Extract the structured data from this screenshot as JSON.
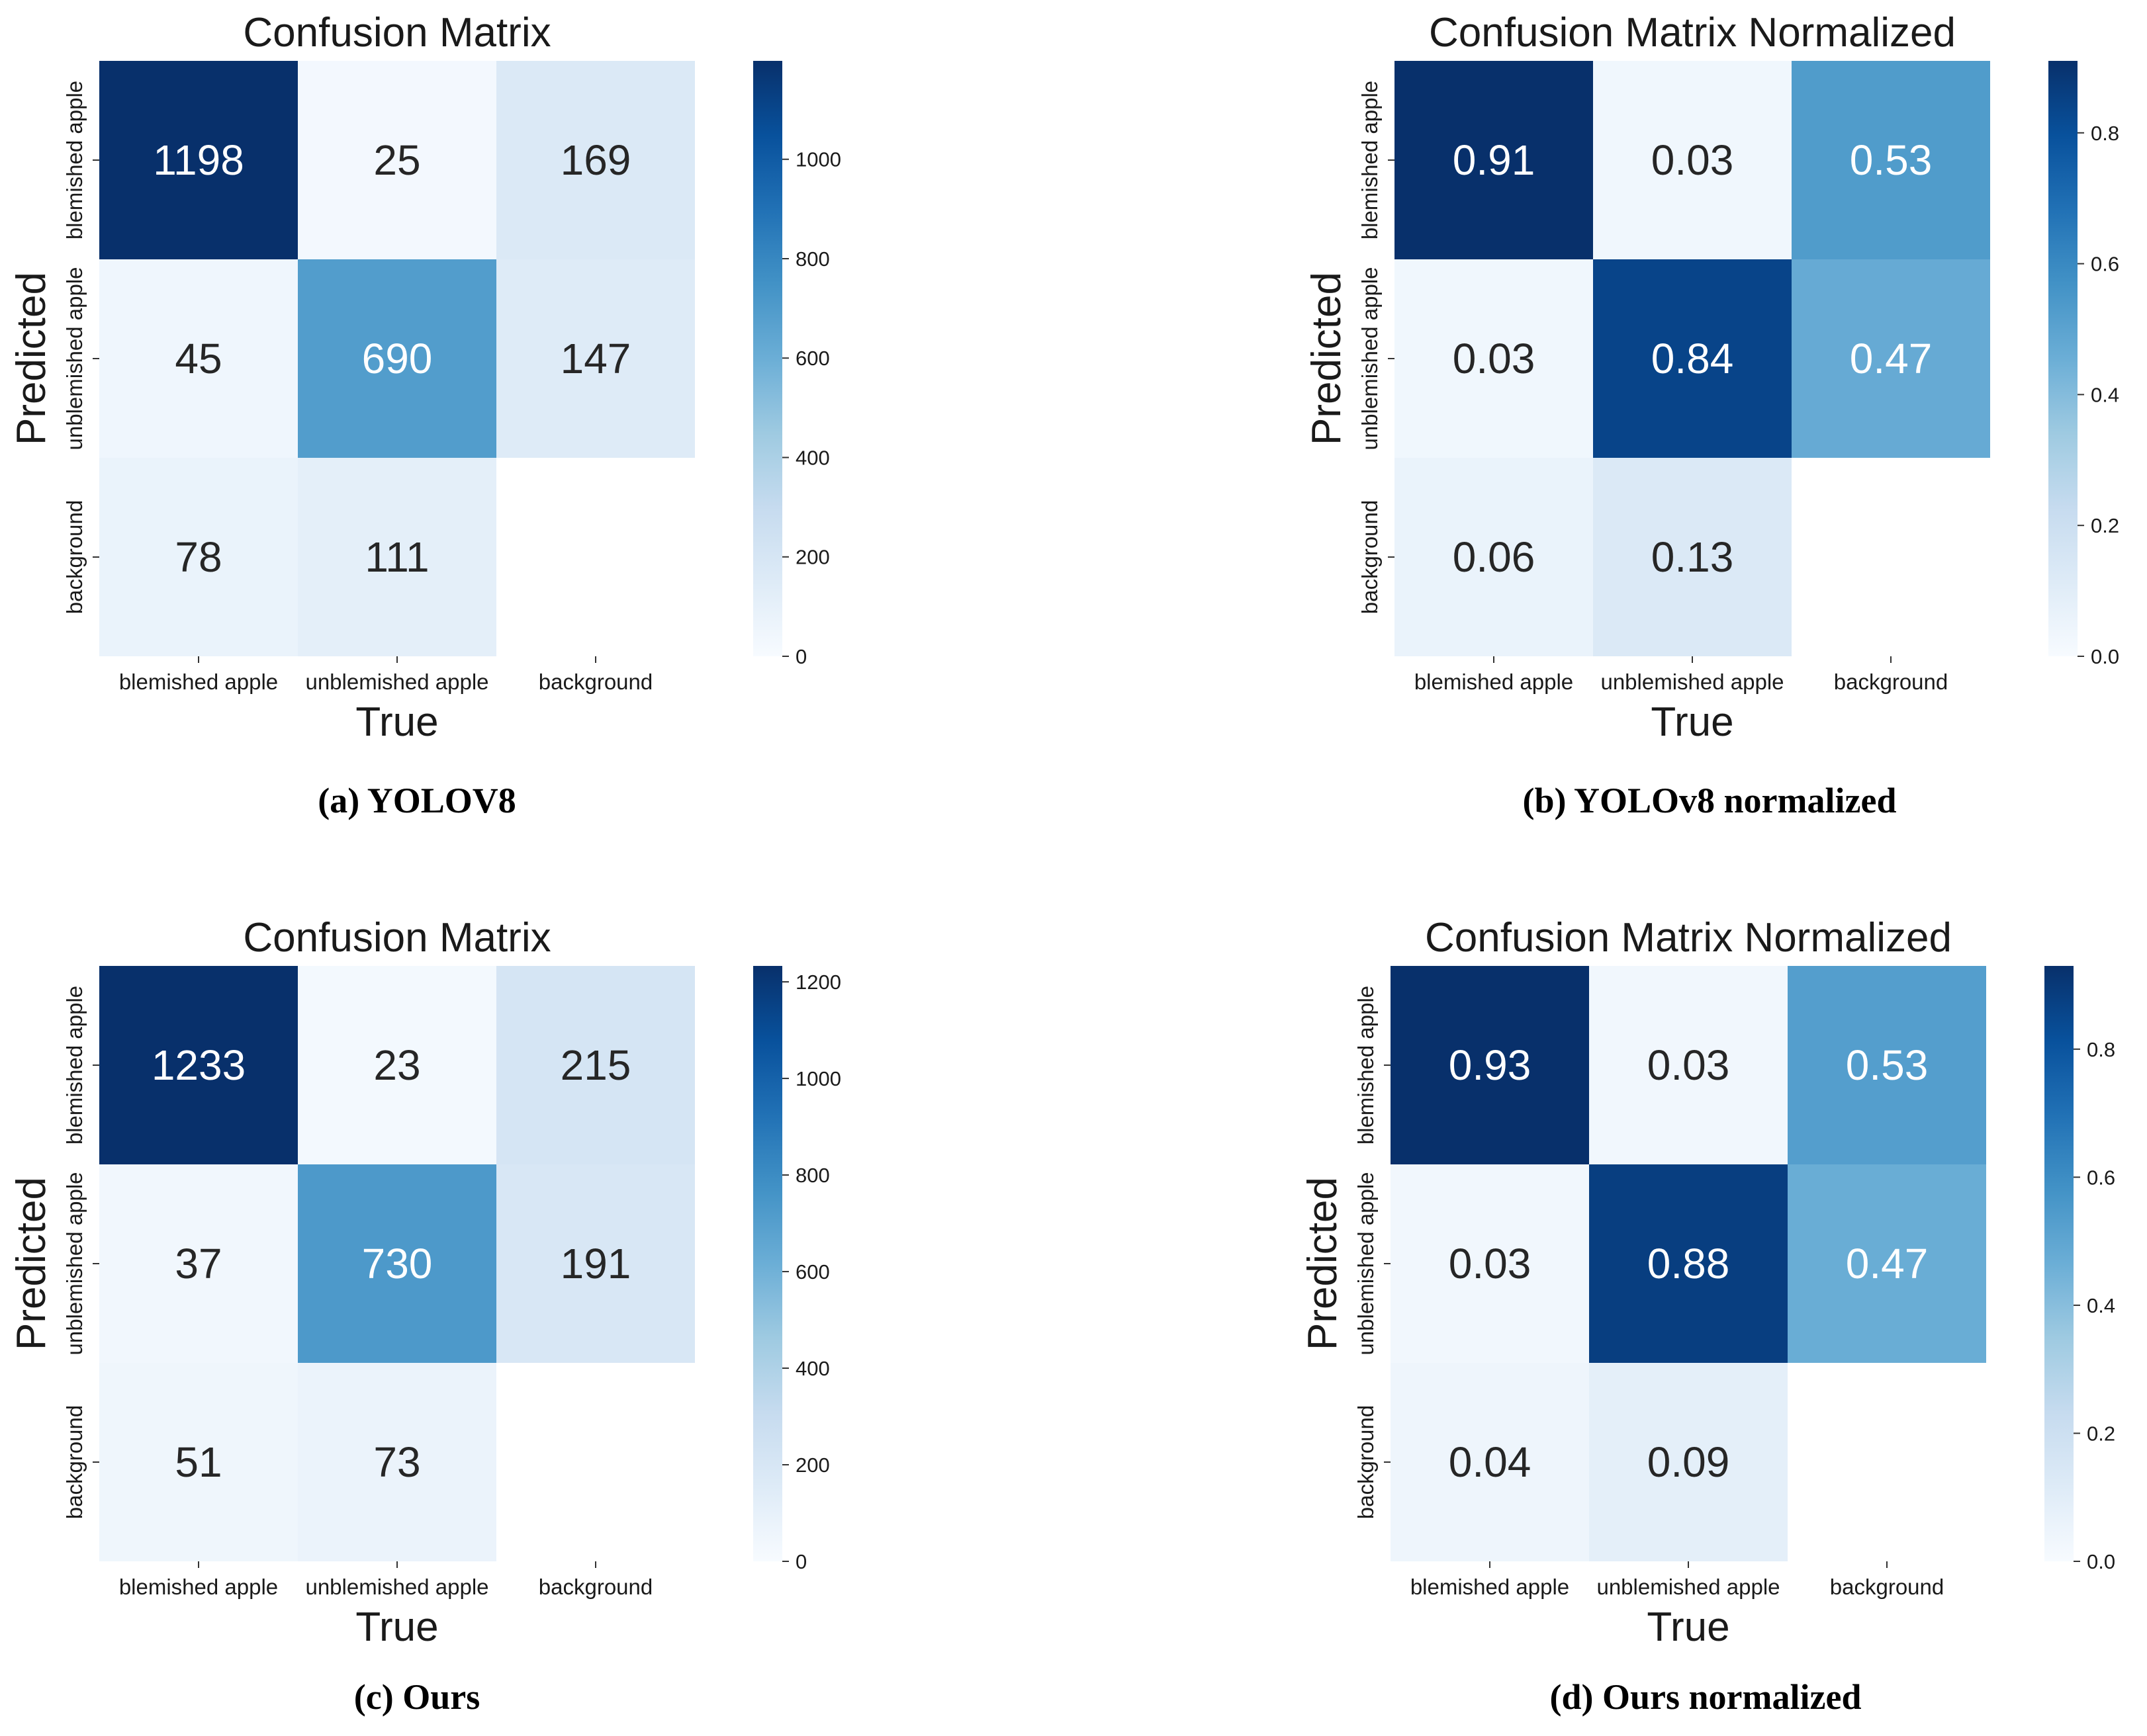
{
  "panels": [
    {
      "caption": "(a) YOLOV8",
      "chart_data": {
        "type": "heatmap",
        "title": "Confusion Matrix",
        "xlabel": "True",
        "ylabel": "Predicted",
        "x_categories": [
          "blemished apple",
          "unblemished apple",
          "background"
        ],
        "y_categories": [
          "blemished apple",
          "unblemished apple",
          "background"
        ],
        "values": [
          [
            1198,
            25,
            169
          ],
          [
            45,
            690,
            147
          ],
          [
            78,
            111,
            null
          ]
        ],
        "cell_labels": [
          [
            "1198",
            "25",
            "169"
          ],
          [
            "45",
            "690",
            "147"
          ],
          [
            "78",
            "111",
            ""
          ]
        ],
        "vmin": 0,
        "vmax": 1198,
        "colorbar_ticks": [
          0,
          200,
          400,
          600,
          800,
          1000
        ],
        "colorbar_tick_labels": [
          "0",
          "200",
          "400",
          "600",
          "800",
          "1000"
        ],
        "colormap": "Blues"
      }
    },
    {
      "caption": "(b) YOLOv8  normalized",
      "chart_data": {
        "type": "heatmap",
        "title": "Confusion Matrix Normalized",
        "xlabel": "True",
        "ylabel": "Predicted",
        "x_categories": [
          "blemished apple",
          "unblemished apple",
          "background"
        ],
        "y_categories": [
          "blemished apple",
          "unblemished apple",
          "background"
        ],
        "values": [
          [
            0.91,
            0.03,
            0.53
          ],
          [
            0.03,
            0.84,
            0.47
          ],
          [
            0.06,
            0.13,
            null
          ]
        ],
        "cell_labels": [
          [
            "0.91",
            "0.03",
            "0.53"
          ],
          [
            "0.03",
            "0.84",
            "0.47"
          ],
          [
            "0.06",
            "0.13",
            ""
          ]
        ],
        "vmin": 0,
        "vmax": 0.91,
        "colorbar_ticks": [
          0,
          0.2,
          0.4,
          0.6,
          0.8
        ],
        "colorbar_tick_labels": [
          "0.0",
          "0.2",
          "0.4",
          "0.6",
          "0.8"
        ],
        "colormap": "Blues"
      }
    },
    {
      "caption": "(c) Ours",
      "chart_data": {
        "type": "heatmap",
        "title": "Confusion Matrix",
        "xlabel": "True",
        "ylabel": "Predicted",
        "x_categories": [
          "blemished apple",
          "unblemished apple",
          "background"
        ],
        "y_categories": [
          "blemished apple",
          "unblemished apple",
          "background"
        ],
        "values": [
          [
            1233,
            23,
            215
          ],
          [
            37,
            730,
            191
          ],
          [
            51,
            73,
            null
          ]
        ],
        "cell_labels": [
          [
            "1233",
            "23",
            "215"
          ],
          [
            "37",
            "730",
            "191"
          ],
          [
            "51",
            "73",
            ""
          ]
        ],
        "vmin": 0,
        "vmax": 1233,
        "colorbar_ticks": [
          0,
          200,
          400,
          600,
          800,
          1000,
          1200
        ],
        "colorbar_tick_labels": [
          "0",
          "200",
          "400",
          "600",
          "800",
          "1000",
          "1200"
        ],
        "colormap": "Blues"
      }
    },
    {
      "caption": "(d) Ours  normalized",
      "chart_data": {
        "type": "heatmap",
        "title": "Confusion Matrix Normalized",
        "xlabel": "True",
        "ylabel": "Predicted",
        "x_categories": [
          "blemished apple",
          "unblemished apple",
          "background"
        ],
        "y_categories": [
          "blemished apple",
          "unblemished apple",
          "background"
        ],
        "values": [
          [
            0.93,
            0.03,
            0.53
          ],
          [
            0.03,
            0.88,
            0.47
          ],
          [
            0.04,
            0.09,
            null
          ]
        ],
        "cell_labels": [
          [
            "0.93",
            "0.03",
            "0.53"
          ],
          [
            "0.03",
            "0.88",
            "0.47"
          ],
          [
            "0.04",
            "0.09",
            ""
          ]
        ],
        "vmin": 0,
        "vmax": 0.93,
        "colorbar_ticks": [
          0,
          0.2,
          0.4,
          0.6,
          0.8
        ],
        "colorbar_tick_labels": [
          "0.0",
          "0.2",
          "0.4",
          "0.6",
          "0.8"
        ],
        "colormap": "Blues"
      }
    }
  ]
}
